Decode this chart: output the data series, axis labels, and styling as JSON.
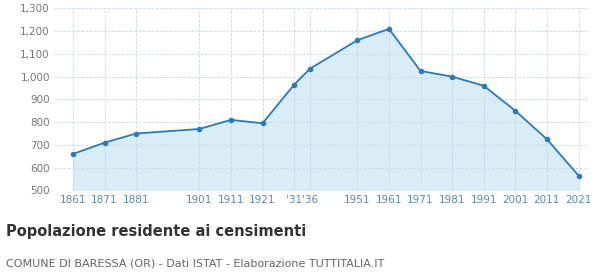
{
  "years": [
    1861,
    1871,
    1881,
    1901,
    1911,
    1921,
    1931,
    1936,
    1951,
    1961,
    1971,
    1981,
    1991,
    2001,
    2011,
    2021
  ],
  "population": [
    660,
    710,
    750,
    770,
    810,
    795,
    965,
    1035,
    1160,
    1210,
    1025,
    1000,
    960,
    850,
    725,
    565
  ],
  "line_color": "#2b7bba",
  "fill_color": "#d9edf7",
  "marker_color": "#2b7bba",
  "bg_color": "#ffffff",
  "grid_color": "#c8d8e8",
  "ylim": [
    500,
    1300
  ],
  "yticks": [
    500,
    600,
    700,
    800,
    900,
    1000,
    1100,
    1200,
    1300
  ],
  "ytick_labels": [
    "500",
    "600",
    "700",
    "800",
    "900",
    "1,000",
    "1,100",
    "1,200",
    "1,300"
  ],
  "x_tick_positions": [
    1861,
    1871,
    1881,
    1901,
    1911,
    1921,
    1931,
    1936,
    1951,
    1961,
    1971,
    1981,
    1991,
    2001,
    2011,
    2021
  ],
  "x_tick_labels": [
    "1861",
    "1871",
    "1881",
    "1901",
    "1911",
    "1921",
    "'31",
    "'36",
    "1951",
    "1961",
    "1971",
    "1981",
    "1991",
    "2001",
    "2011",
    "2021"
  ],
  "title": "Popolazione residente ai censimenti",
  "subtitle": "COMUNE DI BARESSA (OR) - Dati ISTAT - Elaborazione TUTTITALIA.IT",
  "title_fontsize": 10.5,
  "subtitle_fontsize": 8,
  "x_label_color": "#5588bb",
  "y_label_color": "#777777"
}
